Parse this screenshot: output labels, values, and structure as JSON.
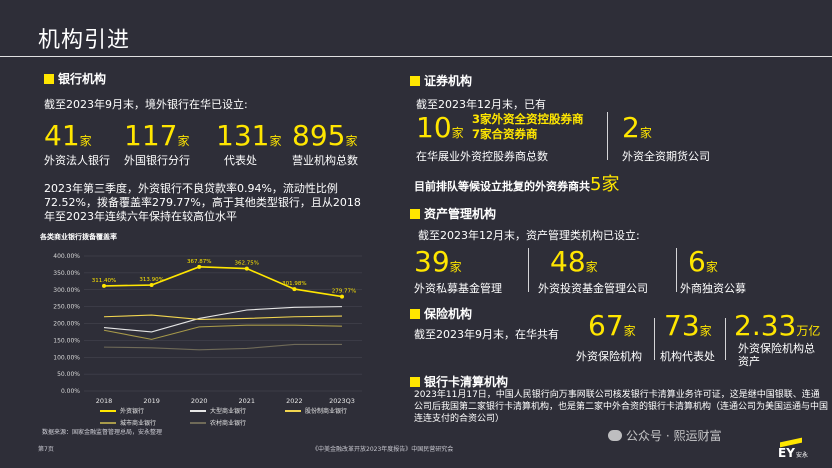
{
  "title": "机构引进",
  "banks": {
    "heading": "银行机构",
    "intro": "截至2023年9月末，境外银行在华已设立:",
    "stats": [
      {
        "value": "41",
        "unit": "家",
        "label": "外资法人银行"
      },
      {
        "value": "117",
        "unit": "家",
        "label": "外国银行分行"
      },
      {
        "value": "131",
        "unit": "家",
        "label": "代表处"
      },
      {
        "value": "895",
        "unit": "家",
        "label": "营业机构总数"
      }
    ],
    "para": "2023年第三季度，外资银行不良贷款率0.94%，流动性比例72.52%，拨备覆盖率279.77%，高于其他类型银行，且从2018年至2023年连续六年保持在较高位水平"
  },
  "securities": {
    "heading": "证券机构",
    "intro": "截至2023年12月末，已有",
    "total_value": "10",
    "total_unit": "家",
    "detail_1": "3家外资全资控股券商",
    "detail_2": "7家合资券商",
    "total_label": "在华展业外资控股券商总数",
    "futures_value": "2",
    "futures_unit": "家",
    "futures_label": "外资全资期货公司",
    "queue_text": "目前排队等候设立批复的外资券商共",
    "queue_value": "5家"
  },
  "asset_mgmt": {
    "heading": "资产管理机构",
    "intro": "截至2023年12月末，资产管理类机构已设立:",
    "stats": [
      {
        "value": "39",
        "unit": "家",
        "label": "外资私募基金管理"
      },
      {
        "value": "48",
        "unit": "家",
        "label": "外资投资基金管理公司"
      },
      {
        "value": "6",
        "unit": "家",
        "label": "外商独资公募"
      }
    ]
  },
  "insurance": {
    "heading": "保险机构",
    "intro": "截至2023年9月末，在华共有",
    "stats": [
      {
        "value": "67",
        "unit": "家",
        "label": "外资保险机构"
      },
      {
        "value": "73",
        "unit": "家",
        "label": "机构代表处"
      },
      {
        "value": "2.33",
        "unit": "万亿",
        "label": "外资保险机构总资产"
      }
    ]
  },
  "card": {
    "heading": "银行卡清算机构",
    "text": "2023年11月17日，中国人民银行向万事网联公司核发银行卡清算业务许可证，这是继中国银联、连通公司后我国第二家银行卡清算机构，也是第二家中外合资的银行卡清算机构（连通公司为美国运通与中国连连支付的合资公司）"
  },
  "chart_title": "各类商业银行拨备覆盖率",
  "chart_data": {
    "type": "line",
    "x": [
      "2018",
      "2019",
      "2020",
      "2021",
      "2022",
      "2023Q3"
    ],
    "ylim": [
      0,
      400
    ],
    "yticks": [
      "0.00%",
      "50.00%",
      "100.00%",
      "150.00%",
      "200.00%",
      "250.00%",
      "300.00%",
      "350.00%",
      "400.00%"
    ],
    "series": [
      {
        "name": "外资银行",
        "values": [
          311.4,
          313.9,
          367.87,
          362.75,
          301.98,
          279.77
        ],
        "labels": [
          "311.40%",
          "313.90%",
          "367.87%",
          "362.75%",
          "301.98%",
          "279.77%"
        ],
        "color": "#ffe600"
      },
      {
        "name": "大型商业银行",
        "values": [
          188,
          175,
          215,
          240,
          248,
          250
        ],
        "color": "#e6e6e6"
      },
      {
        "name": "股份制商业银行",
        "values": [
          220,
          225,
          212,
          215,
          220,
          222
        ],
        "color": "#f2d650"
      },
      {
        "name": "城市商业银行",
        "values": [
          180,
          153,
          190,
          195,
          195,
          192
        ],
        "color": "#a89a4a"
      },
      {
        "name": "农村商业银行",
        "values": [
          130,
          128,
          122,
          126,
          138,
          138
        ],
        "color": "#6f6a58"
      }
    ]
  },
  "chart_source": "数据来源：国家金融监督管理总局，安永整理",
  "footer": {
    "page": "第7页",
    "report": "《中美金融改革开放2023年度报告》中国民营研究会",
    "watermark": "公众号 · 熙运财富",
    "logo": "EY",
    "logo_sub": "安永"
  },
  "colors": {
    "background": "#2e2e38",
    "accent": "#ffe600"
  }
}
